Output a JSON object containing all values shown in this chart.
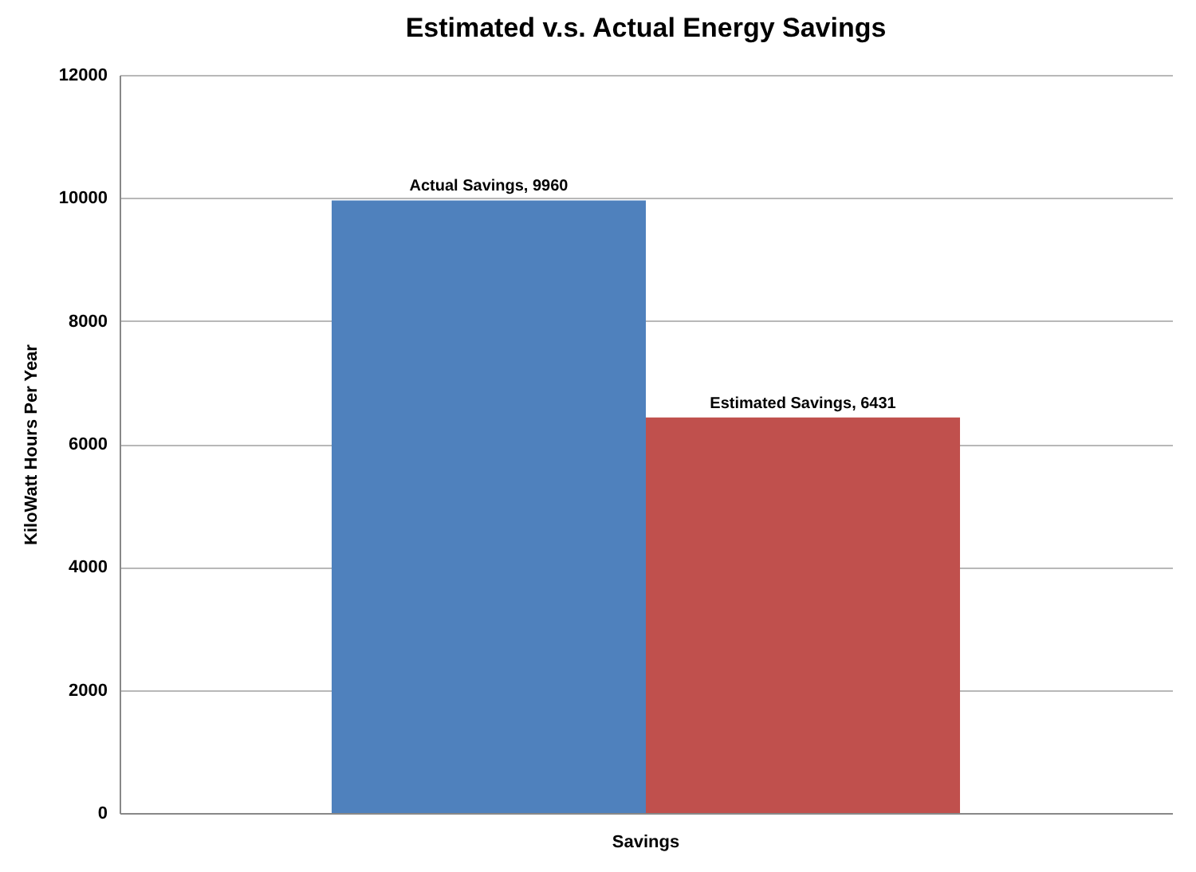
{
  "chart_data": {
    "type": "bar",
    "title": "Estimated v.s. Actual Energy Savings",
    "ylabel": "KiloWatt Hours Per Year",
    "categories": [
      "Savings"
    ],
    "series": [
      {
        "color": "#4f81bd",
        "values": [
          9960
        ],
        "value_labels": [
          "Actual Savings, 9960"
        ]
      },
      {
        "color": "#c0504d",
        "values": [
          6431
        ],
        "value_labels": [
          "Estimated Savings, 6431"
        ]
      }
    ],
    "ylim": [
      0,
      12000
    ],
    "yticks": [
      0,
      2000,
      4000,
      6000,
      8000,
      10000,
      12000
    ],
    "grid": "y",
    "legend": false
  }
}
